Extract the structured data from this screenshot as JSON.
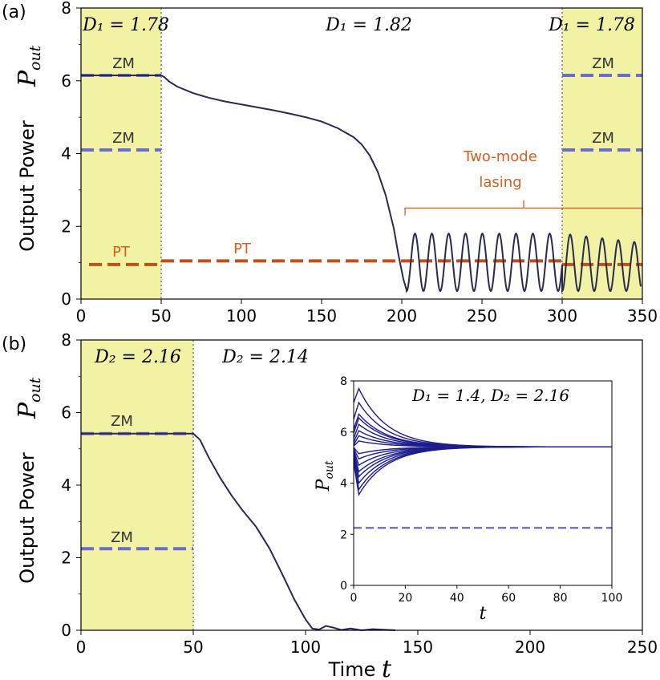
{
  "colors": {
    "shade": "#f2f2a5",
    "zm": "#6b6bd1",
    "pt": "#c0501a",
    "pt_text": "#d4601f",
    "curve": "#2a2a50",
    "inset_curve": "#1c1c8c",
    "divider": "#666666"
  },
  "chart_data": [
    {
      "id": "a",
      "type": "line",
      "panel_label": "(a)",
      "ylabel": "Output Power",
      "ylabel_symbol": "P",
      "ylabel_sub": "out",
      "xlim": [
        0,
        350
      ],
      "ylim": [
        0,
        8
      ],
      "xticks": [
        "0",
        "50",
        "100",
        "150",
        "200",
        "250",
        "300",
        "350"
      ],
      "yticks": [
        "0",
        "2",
        "4",
        "6",
        "8"
      ],
      "shaded_regions": [
        [
          0,
          50
        ],
        [
          300,
          350
        ]
      ],
      "region_labels": [
        {
          "text": "D₁ = 1.78",
          "x_center": 25
        },
        {
          "text": "D₁ = 1.82",
          "x_center": 175
        },
        {
          "text": "D₁ = 1.78",
          "x_center": 325
        }
      ],
      "zm_lines": [
        {
          "label": "ZM",
          "y": 6.15,
          "x": [
            0,
            50
          ]
        },
        {
          "label": "ZM",
          "y": 4.1,
          "x": [
            0,
            50
          ]
        },
        {
          "label": "ZM",
          "y": 6.15,
          "x": [
            300,
            350
          ]
        },
        {
          "label": "ZM",
          "y": 4.1,
          "x": [
            300,
            350
          ]
        }
      ],
      "pt_lines": [
        {
          "label": "PT",
          "y": 0.95,
          "x": [
            5,
            50
          ]
        },
        {
          "label": "PT",
          "y": 1.05,
          "x": [
            50,
            300
          ]
        },
        {
          "label": "",
          "y": 0.95,
          "x": [
            300,
            350
          ]
        }
      ],
      "bracket": {
        "x_start": 202,
        "x_end": 350,
        "y": 2.5,
        "label_line1": "Two-mode",
        "label_line2": "lasing"
      },
      "series": [
        {
          "name": "P_out(t)",
          "segments": [
            {
              "type": "constant",
              "x0": 0,
              "x1": 50,
              "value": 6.15
            },
            {
              "type": "points",
              "points": [
                [
                  50,
                  6.15
                ],
                [
                  52,
                  6.1
                ],
                [
                  55,
                  5.98
                ],
                [
                  60,
                  5.84
                ],
                [
                  70,
                  5.66
                ],
                [
                  80,
                  5.53
                ],
                [
                  90,
                  5.43
                ],
                [
                  100,
                  5.35
                ],
                [
                  110,
                  5.27
                ],
                [
                  120,
                  5.19
                ],
                [
                  130,
                  5.1
                ],
                [
                  140,
                  5.0
                ],
                [
                  150,
                  4.88
                ],
                [
                  160,
                  4.7
                ],
                [
                  170,
                  4.45
                ],
                [
                  175,
                  4.25
                ],
                [
                  180,
                  3.95
                ],
                [
                  185,
                  3.5
                ],
                [
                  190,
                  2.85
                ],
                [
                  195,
                  1.95
                ],
                [
                  198,
                  1.2
                ],
                [
                  201,
                  0.55
                ],
                [
                  203,
                  0.25
                ]
              ]
            },
            {
              "type": "oscillation",
              "x0": 203,
              "x1": 300,
              "min": 0.22,
              "max": 1.8,
              "period": 10.5,
              "start_phase": "min"
            },
            {
              "type": "oscillation",
              "x0": 300,
              "x1": 349,
              "min": 0.22,
              "max_start": 1.8,
              "max_end": 1.55,
              "period": 10,
              "start_phase": "min"
            }
          ]
        }
      ]
    },
    {
      "id": "b",
      "type": "line",
      "panel_label": "(b)",
      "ylabel": "Output Power",
      "ylabel_symbol": "P",
      "ylabel_sub": "out",
      "xlabel": "Time",
      "xlabel_symbol": "t",
      "xlim": [
        0,
        250
      ],
      "ylim": [
        0,
        8
      ],
      "xticks": [
        "0",
        "50",
        "100",
        "150",
        "200",
        "250"
      ],
      "yticks": [
        "0",
        "2",
        "4",
        "6",
        "8"
      ],
      "shaded_regions": [
        [
          0,
          50
        ]
      ],
      "region_labels": [
        {
          "text": "D₂ = 2.16",
          "x_center": 25
        },
        {
          "text": "D₂ = 2.14",
          "x_center": 75
        }
      ],
      "zm_lines": [
        {
          "label": "ZM",
          "y": 5.42,
          "x": [
            0,
            50
          ]
        },
        {
          "label": "ZM",
          "y": 2.25,
          "x": [
            0,
            50
          ]
        }
      ],
      "series": [
        {
          "name": "P_out(t)",
          "points": [
            [
              0,
              5.42
            ],
            [
              50,
              5.42
            ],
            [
              53,
              5.25
            ],
            [
              57,
              4.75
            ],
            [
              62,
              4.2
            ],
            [
              67,
              3.72
            ],
            [
              72,
              3.3
            ],
            [
              78,
              2.85
            ],
            [
              84,
              2.25
            ],
            [
              90,
              1.5
            ],
            [
              95,
              0.85
            ],
            [
              100,
              0.3
            ],
            [
              103,
              0.05
            ],
            [
              106,
              0.02
            ],
            [
              109,
              0.12
            ],
            [
              112,
              0.08
            ],
            [
              116,
              0.01
            ],
            [
              120,
              0.05
            ],
            [
              125,
              0.0
            ],
            [
              130,
              0.03
            ],
            [
              140,
              0.0
            ]
          ]
        }
      ],
      "inset": {
        "title": "D₁ = 1.4, D₂ = 2.16",
        "xlabel": "t",
        "ylabel_symbol": "P",
        "ylabel_sub": "out",
        "xlim": [
          0,
          100
        ],
        "ylim": [
          0,
          8
        ],
        "xticks": [
          "0",
          "20",
          "40",
          "60",
          "80",
          "100"
        ],
        "yticks": [
          "0",
          "2",
          "4",
          "6",
          "8"
        ],
        "steady_value": 5.42,
        "zm_line_y": 2.25,
        "trajectories": [
          {
            "start": 7.15,
            "peak": 7.7
          },
          {
            "start": 6.5,
            "peak": 7.15
          },
          {
            "start": 6.1,
            "peak": 6.7
          },
          {
            "start": 5.95,
            "peak": 6.55
          },
          {
            "start": 5.75,
            "peak": 6.3
          },
          {
            "start": 5.6,
            "peak": 6.05
          },
          {
            "start": 5.5,
            "peak": 5.85
          },
          {
            "start": 5.45,
            "peak": 5.65
          },
          {
            "start": 5.4,
            "peak": 5.15
          },
          {
            "start": 5.35,
            "peak": 4.95
          },
          {
            "start": 5.3,
            "peak": 4.7
          },
          {
            "start": 5.25,
            "peak": 4.45
          },
          {
            "start": 5.2,
            "peak": 4.25
          },
          {
            "start": 5.1,
            "peak": 4.0
          },
          {
            "start": 4.95,
            "peak": 3.75
          },
          {
            "start": 4.8,
            "peak": 3.55
          }
        ]
      }
    }
  ]
}
